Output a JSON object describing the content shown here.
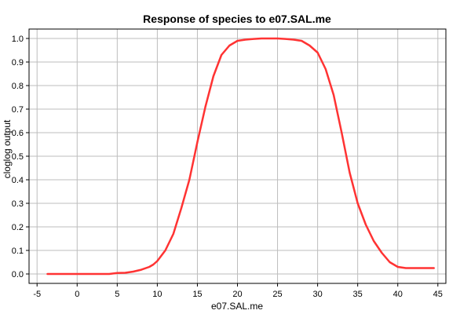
{
  "chart_data": {
    "type": "line",
    "title": "Response of species to e07.SAL.me",
    "xlabel": "e07.SAL.me",
    "ylabel": "cloglog output",
    "xlim": [
      -6,
      46
    ],
    "ylim": [
      -0.04,
      1.04
    ],
    "x_ticks": [
      -5,
      0,
      5,
      10,
      15,
      20,
      25,
      30,
      35,
      40,
      45
    ],
    "y_ticks": [
      0.0,
      0.1,
      0.2,
      0.3,
      0.4,
      0.5,
      0.6,
      0.7,
      0.8,
      0.9,
      1.0
    ],
    "x_tick_labels": [
      "-5",
      "0",
      "5",
      "10",
      "15",
      "20",
      "25",
      "30",
      "35",
      "40",
      "45"
    ],
    "y_tick_labels": [
      "0.0",
      "0.1",
      "0.2",
      "0.3",
      "0.4",
      "0.5",
      "0.6",
      "0.7",
      "0.8",
      "0.9",
      "1.0"
    ],
    "grid": true,
    "line_color": "#ff3333",
    "series": [
      {
        "x": [
          -3.7,
          0,
          4,
          5,
          6,
          7,
          8,
          9,
          9.5,
          10,
          11,
          12,
          13,
          14,
          15,
          16,
          17,
          18,
          19,
          20,
          21,
          22,
          23,
          24,
          25,
          26,
          27,
          28,
          29,
          30,
          31,
          32,
          33,
          34,
          35,
          36,
          37,
          38,
          39,
          40,
          41,
          42,
          44.5
        ],
        "y": [
          0.0,
          0.0,
          0.0,
          0.004,
          0.005,
          0.01,
          0.018,
          0.03,
          0.04,
          0.055,
          0.1,
          0.17,
          0.28,
          0.4,
          0.56,
          0.71,
          0.84,
          0.93,
          0.97,
          0.99,
          0.995,
          0.998,
          1.0,
          1.0,
          1.0,
          0.998,
          0.995,
          0.99,
          0.97,
          0.94,
          0.87,
          0.76,
          0.6,
          0.43,
          0.3,
          0.21,
          0.14,
          0.09,
          0.05,
          0.03,
          0.025,
          0.025,
          0.025
        ]
      }
    ]
  }
}
